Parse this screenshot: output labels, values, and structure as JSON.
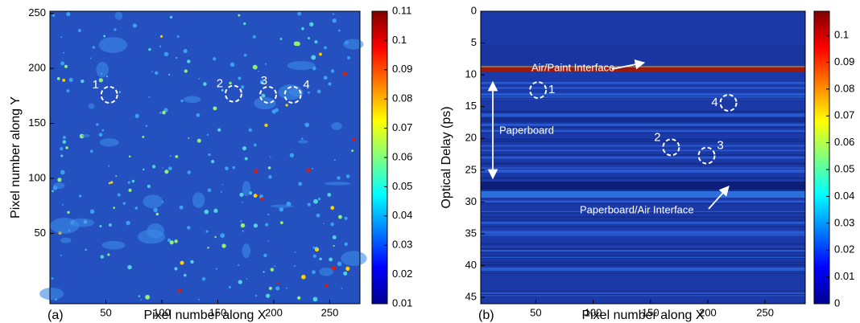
{
  "chart_data": [
    {
      "type": "heatmap",
      "panel_label": "(a)",
      "xlabel": "Pixel number along X",
      "ylabel": "Pixel number along Y",
      "xlim": [
        0,
        277
      ],
      "ylim": [
        -14,
        252
      ],
      "xticks": [
        50,
        100,
        150,
        200,
        250
      ],
      "yticks": [
        50,
        100,
        150,
        200,
        250
      ],
      "colorbar": {
        "lim": [
          0.01,
          0.11
        ],
        "ticks": [
          0.01,
          0.02,
          0.03,
          0.04,
          0.05,
          0.06,
          0.07,
          0.08,
          0.09,
          0.1,
          0.11
        ]
      },
      "markers": [
        {
          "label": "1",
          "x": 53,
          "y": 176
        },
        {
          "label": "2",
          "x": 164,
          "y": 177
        },
        {
          "label": "3",
          "x": 195,
          "y": 176
        },
        {
          "label": "4",
          "x": 217,
          "y": 176
        }
      ]
    },
    {
      "type": "heatmap",
      "panel_label": "(b)",
      "xlabel": "Pixel number along X",
      "ylabel": "Optical Delay (ps)",
      "xlim": [
        2,
        285
      ],
      "ylim": [
        0,
        46
      ],
      "y_inverted": true,
      "xticks": [
        50,
        100,
        150,
        200,
        250
      ],
      "yticks": [
        0,
        5,
        10,
        15,
        20,
        25,
        30,
        35,
        40,
        45
      ],
      "colorbar": {
        "lim": [
          0,
          0.109
        ],
        "ticks": [
          0,
          0.01,
          0.02,
          0.03,
          0.04,
          0.05,
          0.06,
          0.07,
          0.08,
          0.09,
          0.1
        ]
      },
      "markers": [
        {
          "label": "1",
          "x": 52,
          "y": 12.4
        },
        {
          "label": "4",
          "x": 218,
          "y": 14.4
        },
        {
          "label": "2",
          "x": 168,
          "y": 21.4
        },
        {
          "label": "3",
          "x": 199,
          "y": 22.7
        }
      ],
      "annotations": [
        "Air/Paint Interface",
        "Paperboard",
        "Paperboard/Air Interface"
      ]
    }
  ]
}
